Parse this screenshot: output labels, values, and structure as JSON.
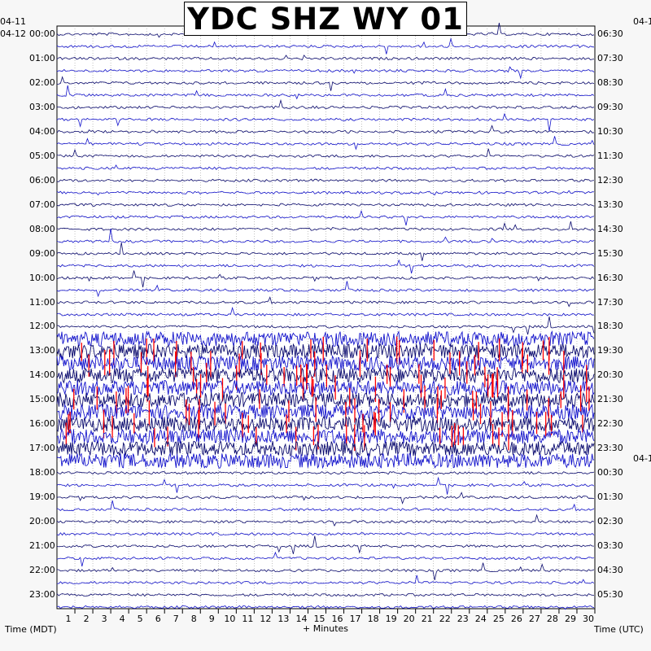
{
  "chart_data": {
    "type": "helicorder",
    "title": "YDC SHZ WY 01",
    "xlabel": "+ Minutes",
    "left_axis_label": "Time (MDT)",
    "right_axis_label": "Time (UTC)",
    "left_top_date": "04-11",
    "left_date": "04-12",
    "right_top_date": "04-1",
    "right_mid_date": "04-1",
    "x_ticks": [
      "1",
      "2",
      "3",
      "4",
      "5",
      "6",
      "7",
      "8",
      "9",
      "10",
      "11",
      "12",
      "13",
      "14",
      "15",
      "16",
      "17",
      "18",
      "19",
      "20",
      "21",
      "22",
      "23",
      "24",
      "25",
      "26",
      "27",
      "28",
      "29",
      "30"
    ],
    "xlim": [
      0,
      30
    ],
    "left_hours": [
      "00:00",
      "01:00",
      "02:00",
      "03:00",
      "04:00",
      "05:00",
      "06:00",
      "07:00",
      "08:00",
      "09:00",
      "10:00",
      "11:00",
      "12:00",
      "13:00",
      "14:00",
      "15:00",
      "16:00",
      "17:00",
      "18:00",
      "19:00",
      "20:00",
      "21:00",
      "22:00",
      "23:00"
    ],
    "right_hours": [
      "06:30",
      "07:30",
      "08:30",
      "09:30",
      "10:30",
      "11:30",
      "12:30",
      "13:30",
      "14:30",
      "15:30",
      "16:30",
      "17:30",
      "18:30",
      "19:30",
      "20:30",
      "21:30",
      "22:30",
      "23:30",
      "00:30",
      "01:30",
      "02:30",
      "03:30",
      "04:30",
      "05:30"
    ],
    "trace_colors": [
      "#0a0a6e",
      "#1414cc",
      "#ff0000",
      "#1a1aff"
    ],
    "noisy_interval_hours": [
      12.5,
      17.5
    ],
    "grid": true
  }
}
